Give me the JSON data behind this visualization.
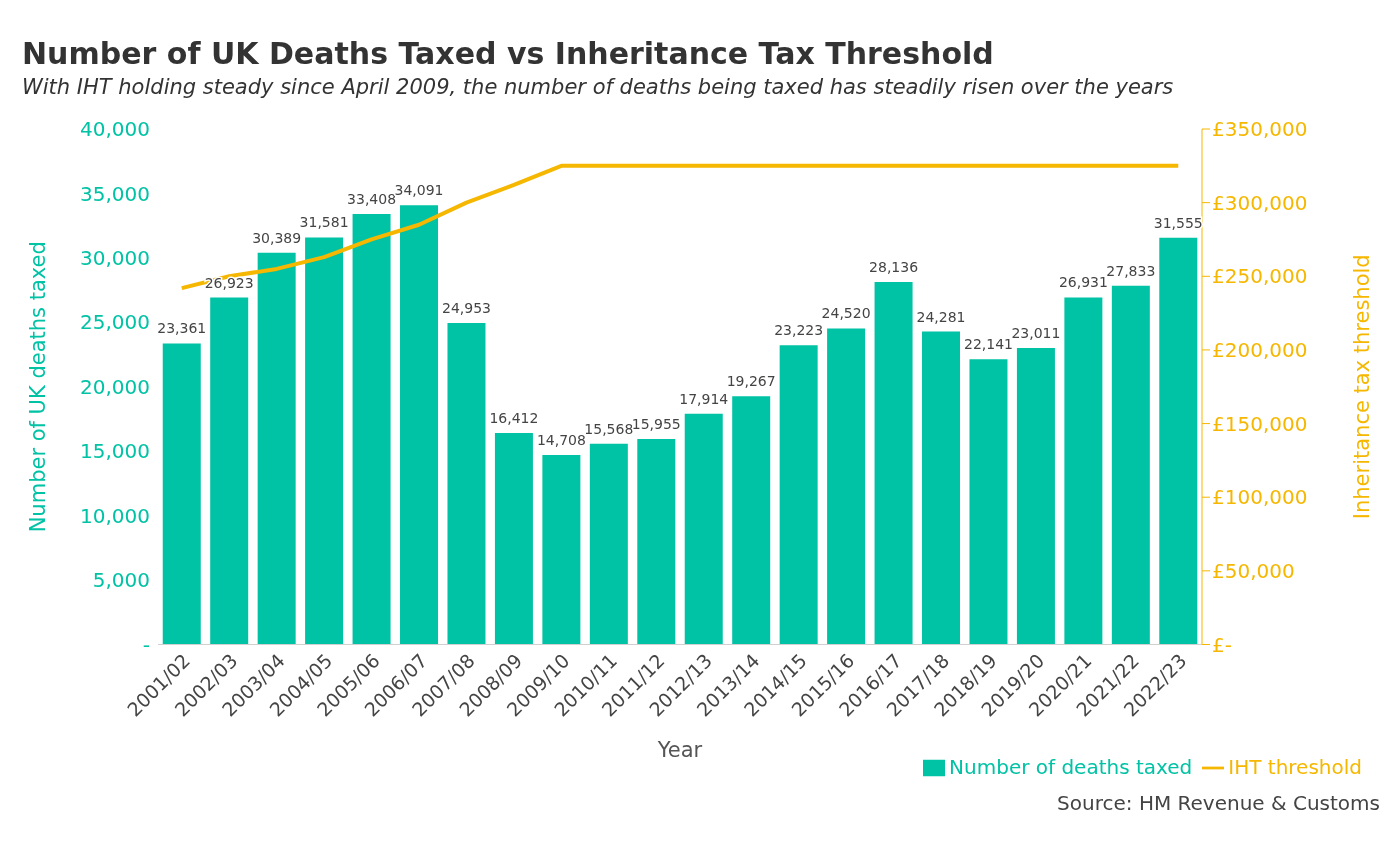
{
  "chart_data": {
    "type": "bar",
    "title": "Number of UK Deaths Taxed vs Inheritance Tax Threshold",
    "subtitle": "With IHT holding steady since April 2009, the number of deaths being taxed has steadily risen over the years",
    "xlabel": "Year",
    "ylabel": "Number of UK deaths taxed",
    "y2label": "Inheritance tax threshold",
    "annotations": [
      "Source: HM Revenue & Customs"
    ],
    "categories": [
      "2001/02",
      "2002/03",
      "2003/04",
      "2004/05",
      "2005/06",
      "2006/07",
      "2007/08",
      "2008/09",
      "2009/10",
      "2010/11",
      "2011/12",
      "2012/13",
      "2013/14",
      "2014/15",
      "2015/16",
      "2016/17",
      "2017/18",
      "2018/19",
      "2019/20",
      "2020/21",
      "2021/22",
      "2022/23"
    ],
    "series": [
      {
        "name": "Number of deaths taxed",
        "color": "#00c2a5",
        "values": [
          23361,
          26923,
          30389,
          31581,
          33408,
          34091,
          24953,
          16412,
          14708,
          15568,
          15955,
          17914,
          19267,
          23223,
          24520,
          28136,
          24281,
          22141,
          23011,
          26931,
          27833,
          31555
        ],
        "value_labels": [
          "23,361",
          "26,923",
          "30,389",
          "31,581",
          "33,408",
          "34,091",
          "24,953",
          "16,412",
          "14,708",
          "15,568",
          "15,955",
          "17,914",
          "19,267",
          "23,223",
          "24,520",
          "28,136",
          "24,281",
          "22,141",
          "23,011",
          "26,931",
          "27,833",
          "31,555"
        ]
      },
      {
        "name": "IHT threshold",
        "type": "line",
        "axis": "y2",
        "color": "#f5b700",
        "values": [
          242000,
          250000,
          255000,
          263000,
          275000,
          285000,
          300000,
          312000,
          325000,
          325000,
          325000,
          325000,
          325000,
          325000,
          325000,
          325000,
          325000,
          325000,
          325000,
          325000,
          325000,
          325000
        ]
      }
    ],
    "ylim": [
      0,
      40000
    ],
    "yticks": [
      {
        "value": 0,
        "label": "-"
      },
      {
        "value": 5000,
        "label": "5,000"
      },
      {
        "value": 10000,
        "label": "10,000"
      },
      {
        "value": 15000,
        "label": "15,000"
      },
      {
        "value": 20000,
        "label": "20,000"
      },
      {
        "value": 25000,
        "label": "25,000"
      },
      {
        "value": 30000,
        "label": "30,000"
      },
      {
        "value": 35000,
        "label": "35,000"
      },
      {
        "value": 40000,
        "label": "40,000"
      }
    ],
    "y2lim": [
      0,
      350000
    ],
    "y2ticks": [
      {
        "value": 0,
        "label": "£-"
      },
      {
        "value": 50000,
        "label": "£50,000"
      },
      {
        "value": 100000,
        "label": "£100,000"
      },
      {
        "value": 150000,
        "label": "£150,000"
      },
      {
        "value": 200000,
        "label": "£200,000"
      },
      {
        "value": 250000,
        "label": "£250,000"
      },
      {
        "value": 300000,
        "label": "£300,000"
      },
      {
        "value": 350000,
        "label": "£350,000"
      }
    ],
    "grid": false,
    "legend": "bottom right"
  }
}
